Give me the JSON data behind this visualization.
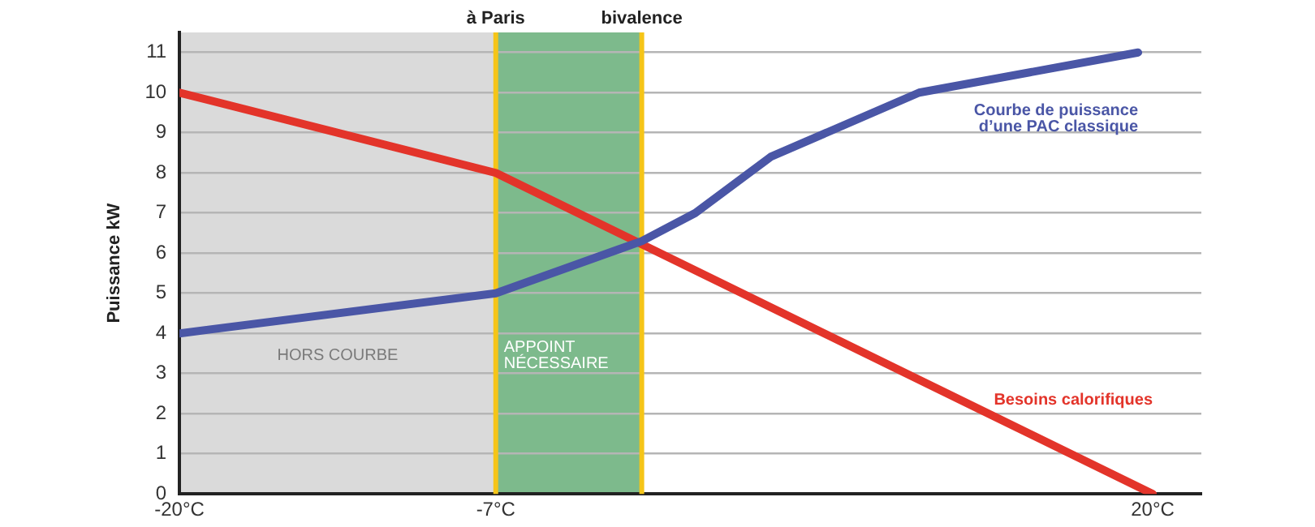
{
  "chart_data": {
    "type": "line",
    "ylabel": "Puissance kW",
    "xlim": [
      -20,
      22
    ],
    "xticks": [
      {
        "value": -20,
        "label": "-20°C"
      },
      {
        "value": -7,
        "label": "-7°C"
      },
      {
        "value": 20,
        "label": "20°C"
      }
    ],
    "ylim": [
      0,
      11.5
    ],
    "yticks": [
      0,
      1,
      2,
      3,
      4,
      5,
      6,
      7,
      8,
      9,
      10,
      11
    ],
    "grid": "y",
    "legend": false,
    "marker": "none",
    "series": [
      {
        "name": "Courbe de puissance d’une PAC classique",
        "color": "#4a56a6",
        "x": [
          -20,
          -7,
          -1,
          1.2,
          4.3,
          10.4,
          19.4
        ],
        "values": [
          4,
          5,
          6.3,
          7,
          8.4,
          10,
          11
        ]
      },
      {
        "name": "Besoins calorifiques",
        "color": "#e3342a",
        "x": [
          -20,
          -7,
          20
        ],
        "values": [
          10,
          8,
          0
        ]
      }
    ],
    "ref_lines": [
      {
        "axis": "x",
        "value": -7,
        "label": "à Paris",
        "color": "#f5c518"
      },
      {
        "axis": "x",
        "value": -1,
        "label": "bivalence",
        "color": "#f5c518"
      }
    ],
    "bands": [
      {
        "axis": "x",
        "from": -20,
        "to": -7,
        "label": "HORS COURBE",
        "color": "#dadada"
      },
      {
        "axis": "x",
        "from": -7,
        "to": -1,
        "label": "APPOINT NÉCESSAIRE",
        "color": "#7dba8c"
      }
    ]
  }
}
